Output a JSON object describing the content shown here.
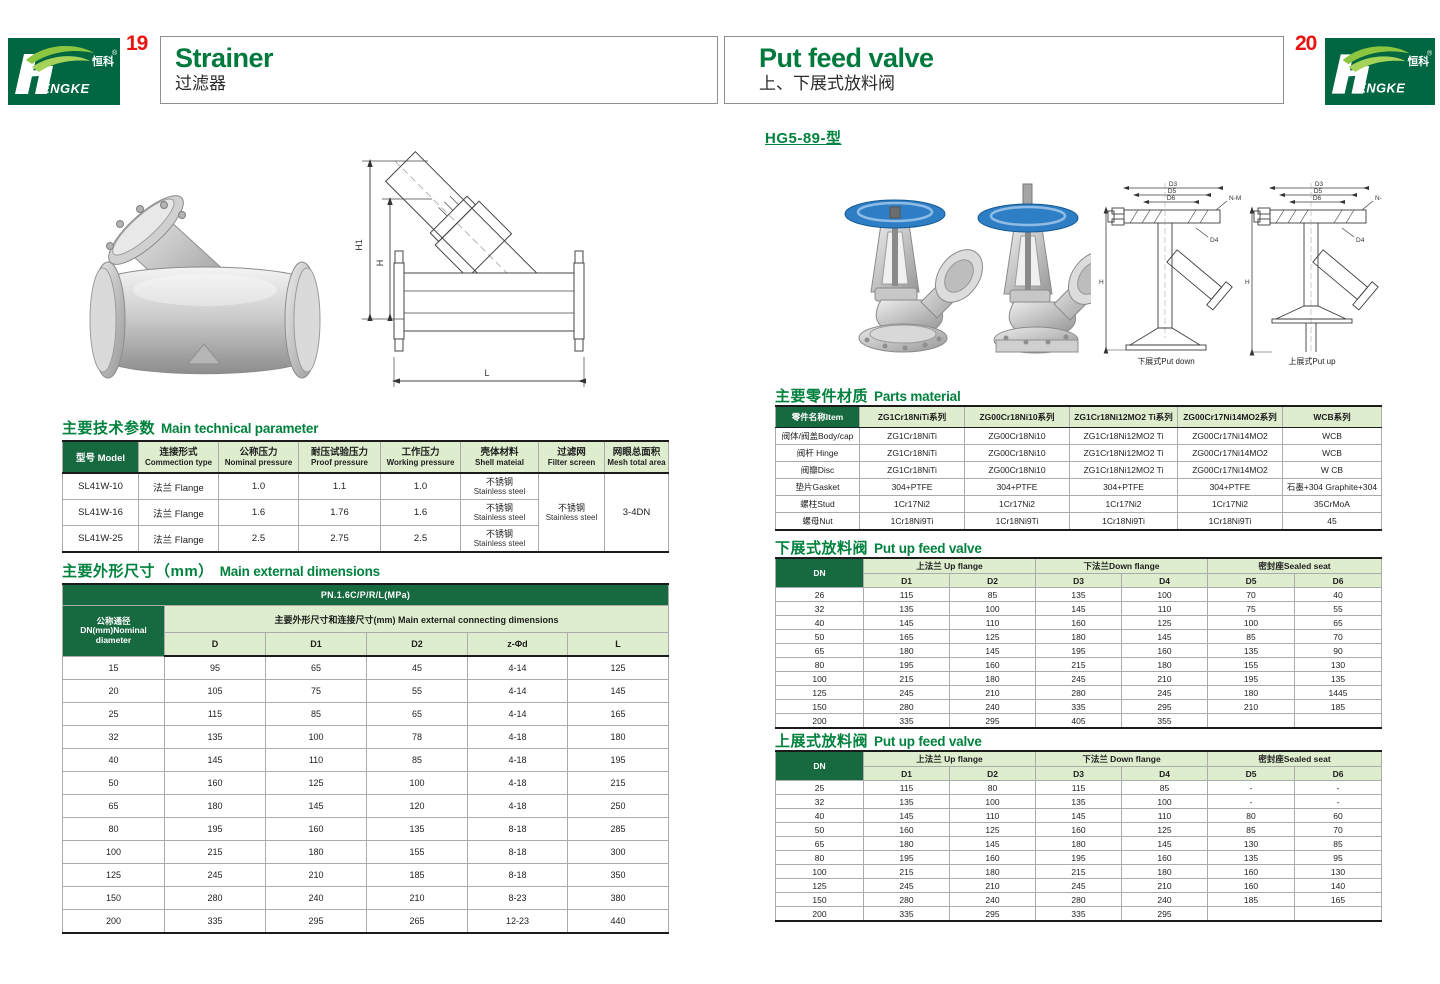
{
  "colors": {
    "brand_green": "#006741",
    "table_header_dark_green": "#17693F",
    "table_header_light_green": "#DEEDCE",
    "section_title_green": "#00823E",
    "page_number_red": "#E8140F"
  },
  "brand": {
    "cn": "恒科",
    "en": "ENGKE",
    "reg": "®"
  },
  "header_left": {
    "page_number": "19",
    "title_en": "Strainer",
    "title_cn": "过滤器"
  },
  "header_right": {
    "page_number": "20",
    "title_en": "Put feed valve",
    "title_cn": "上、下展式放料阀"
  },
  "left": {
    "tech_title_cn": "主要技术参数",
    "tech_title_en": "Main technical parameter",
    "tech_headers": [
      {
        "cn": "型号",
        "en": "Model"
      },
      {
        "cn": "连接形式",
        "en": "Commection type"
      },
      {
        "cn": "公称压力",
        "en": "Nominal pressure"
      },
      {
        "cn": "耐压试验压力",
        "en": "Proof pressure"
      },
      {
        "cn": "工作压力",
        "en": "Working pressure"
      },
      {
        "cn": "壳体材料",
        "en": "Shell mateial"
      },
      {
        "cn": "过滤网",
        "en": "Filter screen"
      },
      {
        "cn": "网眼总面积",
        "en": "Mesh total area"
      }
    ],
    "tech_rows": [
      {
        "model": "SL41W-10",
        "conn": "法兰 Flange",
        "nominal": "1.0",
        "proof": "1.1",
        "working": "1.0",
        "shell_cn": "不锈钢",
        "shell_en": "Stainless steel"
      },
      {
        "model": "SL41W-16",
        "conn": "法兰 Flange",
        "nominal": "1.6",
        "proof": "1.76",
        "working": "1.6",
        "shell_cn": "不锈钢",
        "shell_en": "Stainless steel"
      },
      {
        "model": "SL41W-25",
        "conn": "法兰 Flange",
        "nominal": "2.5",
        "proof": "2.75",
        "working": "2.5",
        "shell_cn": "不锈钢",
        "shell_en": "Stainless steel"
      }
    ],
    "tech_filter_cn": "不锈钢",
    "tech_filter_en": "Stainless steel",
    "tech_mesh": "3-4DN",
    "dim_title_cn": "主要外形尺寸（mm）",
    "dim_title_en": "Main external dimensions",
    "dim_pn": "PN.1.6C/P/R/L(MPa)",
    "dim_dn": [
      "公称通径",
      "DN(mm)Nominal",
      "diameter"
    ],
    "dim_group": "主要外形尺寸和连接尺寸(mm) Main external connecting dimensions",
    "dim_cols": [
      "D",
      "D1",
      "D2",
      "z-Φd",
      "L"
    ],
    "dim_rows": [
      [
        "15",
        "95",
        "65",
        "45",
        "4-14",
        "125"
      ],
      [
        "20",
        "105",
        "75",
        "55",
        "4-14",
        "145"
      ],
      [
        "25",
        "115",
        "85",
        "65",
        "4-14",
        "165"
      ],
      [
        "32",
        "135",
        "100",
        "78",
        "4-18",
        "180"
      ],
      [
        "40",
        "145",
        "110",
        "85",
        "4-18",
        "195"
      ],
      [
        "50",
        "160",
        "125",
        "100",
        "4-18",
        "215"
      ],
      [
        "65",
        "180",
        "145",
        "120",
        "4-18",
        "250"
      ],
      [
        "80",
        "195",
        "160",
        "135",
        "8-18",
        "285"
      ],
      [
        "100",
        "215",
        "180",
        "155",
        "8-18",
        "300"
      ],
      [
        "125",
        "245",
        "210",
        "185",
        "8-18",
        "350"
      ],
      [
        "150",
        "280",
        "240",
        "210",
        "8-23",
        "380"
      ],
      [
        "200",
        "335",
        "295",
        "265",
        "12-23",
        "440"
      ]
    ],
    "drawing": {
      "h1": "H1",
      "h": "H",
      "l": "L"
    }
  },
  "right": {
    "model_title": "HG5-89-型",
    "parts_title_cn": "主要零件材质",
    "parts_title_en": "Parts material",
    "parts_headers": [
      "零件名称Item",
      "ZG1Cr18NiTi系列",
      "ZG00Cr18Ni10系列",
      "ZG1Cr18Ni12MO2 Ti系列",
      "ZG00Cr17Ni14MO2系列",
      "WCB系列"
    ],
    "parts_rows": [
      [
        "阀体/阀盖Body/cap",
        "ZG1Cr18NiTi",
        "ZG00Cr18Ni10",
        "ZG1Cr18Ni12MO2 Ti",
        "ZG00Cr17Ni14MO2",
        "WCB"
      ],
      [
        "阀杆 Hinge",
        "ZG1Cr18NiTi",
        "ZG00Cr18Ni10",
        "ZG1Cr18Ni12MO2 Ti",
        "ZG00Cr17Ni14MO2",
        "WCB"
      ],
      [
        "阀瓣Disc",
        "ZG1Cr18NiTi",
        "ZG00Cr18Ni10",
        "ZG1Cr18Ni12MO2 Ti",
        "ZG00Cr17Ni14MO2",
        "W CB"
      ],
      [
        "垫片Gasket",
        "304+PTFE",
        "304+PTFE",
        "304+PTFE",
        "304+PTFE",
        "石墨+304 Graphite+304"
      ],
      [
        "螺柱Stud",
        "1Cr17Ni2",
        "1Cr17Ni2",
        "1Cr17Ni2",
        "1Cr17Ni2",
        "35CrMoA"
      ],
      [
        "螺母Nut",
        "1Cr18Ni9Ti",
        "1Cr18Ni9Ti",
        "1Cr18Ni9Ti",
        "1Cr18Ni9Ti",
        "45"
      ]
    ],
    "down_title_cn": "下展式放料阀",
    "down_title_en": "Put up feed valve",
    "up_title_cn": "上展式放料阀",
    "up_title_en": "Put up feed valve",
    "dn_label": "DN",
    "down_groups": [
      "上法兰 Up flange",
      "下法兰Down flange",
      "密封座Sealed seat"
    ],
    "up_groups": [
      "上法兰 Up flange",
      "下法兰 Down flange",
      "密封座Sealed seat"
    ],
    "d_cols": [
      "D1",
      "D2",
      "D3",
      "D4",
      "D5",
      "D6"
    ],
    "down_rows": [
      [
        "26",
        "115",
        "85",
        "135",
        "100",
        "70",
        "40"
      ],
      [
        "32",
        "135",
        "100",
        "145",
        "110",
        "75",
        "55"
      ],
      [
        "40",
        "145",
        "110",
        "160",
        "125",
        "100",
        "65"
      ],
      [
        "50",
        "165",
        "125",
        "180",
        "145",
        "85",
        "70"
      ],
      [
        "65",
        "180",
        "145",
        "195",
        "160",
        "135",
        "90"
      ],
      [
        "80",
        "195",
        "160",
        "215",
        "180",
        "155",
        "130"
      ],
      [
        "100",
        "215",
        "180",
        "245",
        "210",
        "195",
        "135"
      ],
      [
        "125",
        "245",
        "210",
        "280",
        "245",
        "180",
        "1445"
      ],
      [
        "150",
        "280",
        "240",
        "335",
        "295",
        "210",
        "185"
      ],
      [
        "200",
        "335",
        "295",
        "405",
        "355",
        "",
        ""
      ]
    ],
    "up_rows": [
      [
        "25",
        "115",
        "80",
        "115",
        "85",
        "-",
        "-"
      ],
      [
        "32",
        "135",
        "100",
        "135",
        "100",
        "-",
        "-"
      ],
      [
        "40",
        "145",
        "110",
        "145",
        "110",
        "80",
        "60"
      ],
      [
        "50",
        "160",
        "125",
        "160",
        "125",
        "85",
        "70"
      ],
      [
        "65",
        "180",
        "145",
        "180",
        "145",
        "130",
        "85"
      ],
      [
        "80",
        "195",
        "160",
        "195",
        "160",
        "135",
        "95"
      ],
      [
        "100",
        "215",
        "180",
        "215",
        "180",
        "160",
        "130"
      ],
      [
        "125",
        "245",
        "210",
        "245",
        "210",
        "160",
        "140"
      ],
      [
        "150",
        "280",
        "240",
        "280",
        "240",
        "185",
        "165"
      ],
      [
        "200",
        "335",
        "295",
        "335",
        "295",
        "",
        ""
      ]
    ],
    "drawing_captions": [
      "下展式Put down",
      "上展式Put up"
    ],
    "drawing_labels": {
      "d3": "D3",
      "d5": "D5",
      "d6": "D6",
      "nm": "N-M",
      "d4": "D4",
      "h": "H"
    }
  }
}
